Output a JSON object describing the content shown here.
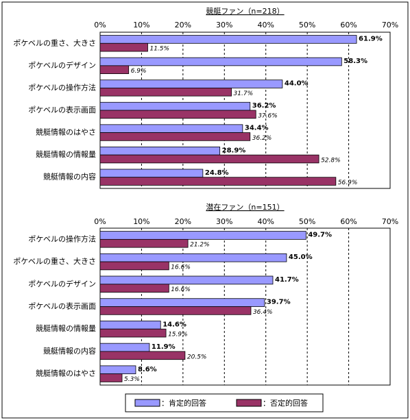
{
  "chart_data": [
    {
      "type": "bar",
      "orientation": "horizontal",
      "title": "競艇ファン（n=218）",
      "categories": [
        "ポケベルの重さ、大きさ",
        "ポケベルのデザイン",
        "ポケベルの操作方法",
        "ポケベルの表示画面",
        "競艇情報のはやさ",
        "競艇情報の情報量",
        "競艇情報の内容"
      ],
      "series": [
        {
          "name": "：肯定的回答",
          "color": "#9999ff",
          "values": [
            61.9,
            58.3,
            44.0,
            36.2,
            34.4,
            28.9,
            24.8
          ],
          "value_labels": [
            "61.9%",
            "58.3%",
            "44.0%",
            "36.2%",
            "34.4%",
            "28.9%",
            "24.8%"
          ]
        },
        {
          "name": "：否定的回答",
          "color": "#993366",
          "values": [
            11.5,
            6.9,
            31.7,
            37.6,
            36.2,
            52.8,
            56.9
          ],
          "value_labels": [
            "11.5%",
            "6.9%",
            "31.7%",
            "37.6%",
            "36.2%",
            "52.8%",
            "56.9%"
          ]
        }
      ],
      "xlim": [
        0,
        70
      ],
      "xticks": [
        {
          "value": 0,
          "label": "0%"
        },
        {
          "value": 10,
          "label": "10%"
        },
        {
          "value": 20,
          "label": "20%"
        },
        {
          "value": 30,
          "label": "30%"
        },
        {
          "value": 40,
          "label": "40%"
        },
        {
          "value": 50,
          "label": "50%"
        },
        {
          "value": 60,
          "label": "60%"
        },
        {
          "value": 70,
          "label": "70%"
        }
      ],
      "grid": true
    },
    {
      "type": "bar",
      "orientation": "horizontal",
      "title": "潜在ファン（n=151）",
      "categories": [
        "ポケベルの操作方法",
        "ポケベルの重さ、大きさ",
        "ポケベルのデザイン",
        "ポケベルの表示画面",
        "競艇情報の情報量",
        "競艇情報の内容",
        "競艇情報のはやさ"
      ],
      "series": [
        {
          "name": "：肯定的回答",
          "color": "#9999ff",
          "values": [
            49.7,
            45.0,
            41.7,
            39.7,
            14.6,
            11.9,
            8.6
          ],
          "value_labels": [
            "49.7%",
            "45.0%",
            "41.7%",
            "39.7%",
            "14.6%",
            "11.9%",
            "8.6%"
          ]
        },
        {
          "name": "：否定的回答",
          "color": "#993366",
          "values": [
            21.2,
            16.6,
            16.6,
            36.4,
            15.9,
            20.5,
            5.3
          ],
          "value_labels": [
            "21.2%",
            "16.6%",
            "16.6%",
            "36.4%",
            "15.9%",
            "20.5%",
            "5.3%"
          ]
        }
      ],
      "xlim": [
        0,
        70
      ],
      "xticks": [
        {
          "value": 0,
          "label": "0%"
        },
        {
          "value": 10,
          "label": "10%"
        },
        {
          "value": 20,
          "label": "20%"
        },
        {
          "value": 30,
          "label": "30%"
        },
        {
          "value": 40,
          "label": "40%"
        },
        {
          "value": 50,
          "label": "50%"
        },
        {
          "value": 60,
          "label": "60%"
        },
        {
          "value": 70,
          "label": "70%"
        }
      ],
      "grid": true
    }
  ]
}
